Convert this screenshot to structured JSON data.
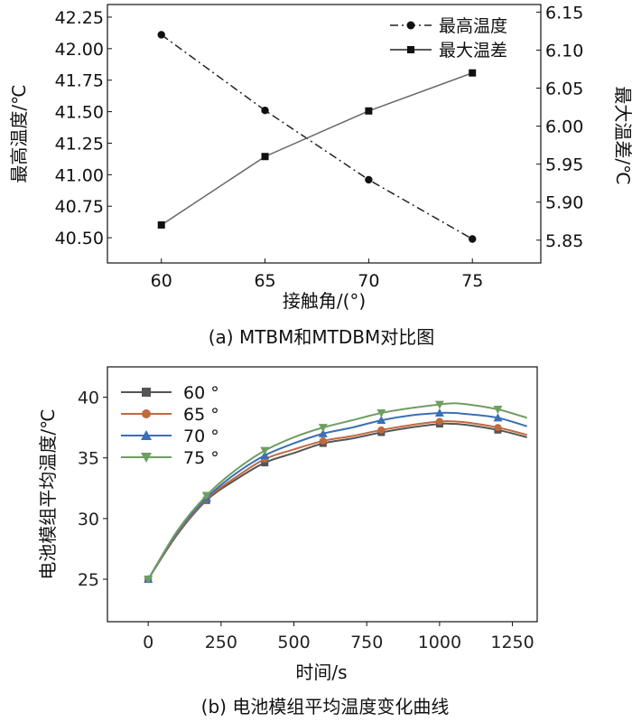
{
  "chart_data": [
    {
      "type": "line",
      "caption": "(a) MTBM和MTDBM对比图",
      "xlabel": "接触角/(°)",
      "ylabel_left": "最高温度/℃",
      "ylabel_right": "最大温差/℃",
      "x": [
        60,
        65,
        70,
        75
      ],
      "x_ticks": [
        "60",
        "65",
        "70",
        "75"
      ],
      "ylim_left": [
        40.3,
        42.35
      ],
      "ylim_right": [
        5.82,
        6.16
      ],
      "y_ticks_left": [
        "40.50",
        "40.75",
        "41.00",
        "41.25",
        "41.50",
        "41.75",
        "42.00",
        "42.25"
      ],
      "y_ticks_right": [
        "5.85",
        "5.90",
        "5.95",
        "6.00",
        "6.05",
        "6.10",
        "6.15"
      ],
      "legend_position": "top-right",
      "series": [
        {
          "name": "最高温度",
          "axis": "left",
          "marker": "circle",
          "style": "dash-dot",
          "values": [
            42.11,
            41.51,
            40.96,
            40.49
          ]
        },
        {
          "name": "最大温差",
          "axis": "right",
          "marker": "square",
          "style": "solid",
          "values": [
            5.87,
            5.96,
            6.02,
            6.07
          ]
        }
      ]
    },
    {
      "type": "line",
      "caption": "(b) 电池模组平均温度变化曲线",
      "xlabel": "时间/s",
      "ylabel": "电池模组平均温度/℃",
      "xlim": [
        -140,
        1335
      ],
      "ylim": [
        21.5,
        42.5
      ],
      "x_ticks": [
        "0",
        "250",
        "500",
        "750",
        "1000",
        "1250"
      ],
      "y_ticks": [
        "25",
        "30",
        "35",
        "40"
      ],
      "legend_position": "top-left",
      "marker_x": [
        0,
        200,
        400,
        600,
        800,
        1000,
        1200
      ],
      "series": [
        {
          "name": "60 °",
          "color": "#555555",
          "marker": "square",
          "x": [
            0,
            100,
            200,
            300,
            400,
            500,
            600,
            700,
            800,
            900,
            1000,
            1050,
            1100,
            1200,
            1300
          ],
          "values": [
            25.0,
            28.7,
            31.5,
            33.2,
            34.6,
            35.4,
            36.2,
            36.6,
            37.1,
            37.5,
            37.8,
            37.8,
            37.7,
            37.3,
            36.7
          ]
        },
        {
          "name": "65 °",
          "color": "#c06a3e",
          "marker": "circle",
          "x": [
            0,
            100,
            200,
            300,
            400,
            500,
            600,
            700,
            800,
            900,
            1000,
            1050,
            1100,
            1200,
            1300
          ],
          "values": [
            25.0,
            28.8,
            31.6,
            33.4,
            34.9,
            35.7,
            36.4,
            36.8,
            37.3,
            37.7,
            38.0,
            38.0,
            37.9,
            37.5,
            36.9
          ]
        },
        {
          "name": "70 °",
          "color": "#3b6fb6",
          "marker": "triangle-up",
          "x": [
            0,
            100,
            200,
            300,
            400,
            500,
            600,
            700,
            800,
            900,
            1000,
            1050,
            1100,
            1200,
            1300
          ],
          "values": [
            25.0,
            28.9,
            31.7,
            33.7,
            35.2,
            36.2,
            37.0,
            37.5,
            38.1,
            38.5,
            38.7,
            38.7,
            38.6,
            38.3,
            37.6
          ]
        },
        {
          "name": "75 °",
          "color": "#6f9e63",
          "marker": "triangle-down",
          "x": [
            0,
            100,
            200,
            300,
            400,
            500,
            600,
            700,
            800,
            900,
            1000,
            1050,
            1100,
            1200,
            1300
          ],
          "values": [
            25.0,
            29.0,
            31.9,
            34.0,
            35.6,
            36.7,
            37.5,
            38.1,
            38.7,
            39.1,
            39.4,
            39.5,
            39.4,
            39.0,
            38.3
          ]
        }
      ]
    }
  ]
}
